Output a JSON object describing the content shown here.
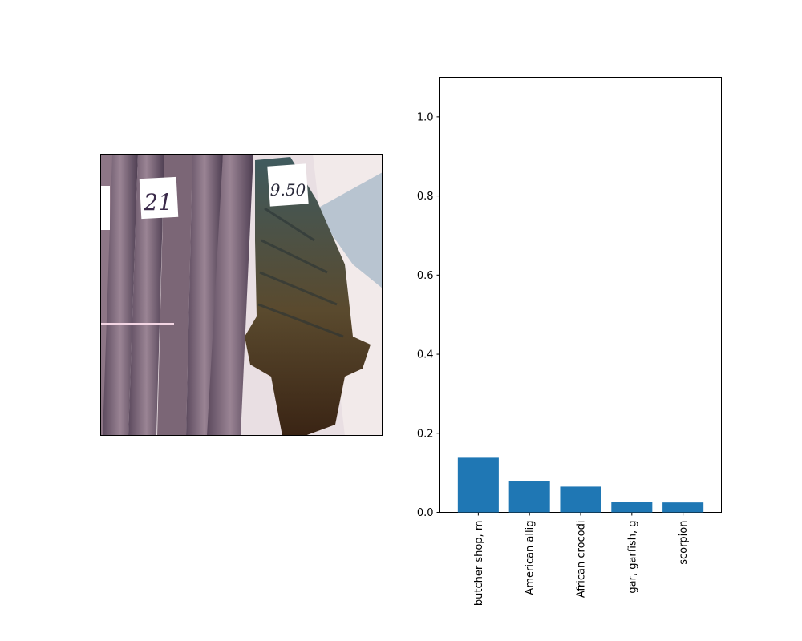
{
  "image_panel": {
    "description_icon": "photo-icon",
    "price_tags": [
      "21",
      "9.50"
    ]
  },
  "chart_data": {
    "type": "bar",
    "categories": [
      "butcher shop, m",
      "American allig",
      "African crocodi",
      "gar, garfish, g",
      "scorpion"
    ],
    "values": [
      0.14,
      0.08,
      0.065,
      0.027,
      0.025
    ],
    "title": "",
    "xlabel": "",
    "ylabel": "",
    "ylim": [
      0,
      1.1
    ],
    "yticks": [
      0.0,
      0.2,
      0.4,
      0.6,
      0.8,
      1.0
    ],
    "ytick_labels": [
      "0.0",
      "0.2",
      "0.4",
      "0.6",
      "0.8",
      "1.0"
    ],
    "bar_color": "#1f77b4",
    "grid": false
  }
}
